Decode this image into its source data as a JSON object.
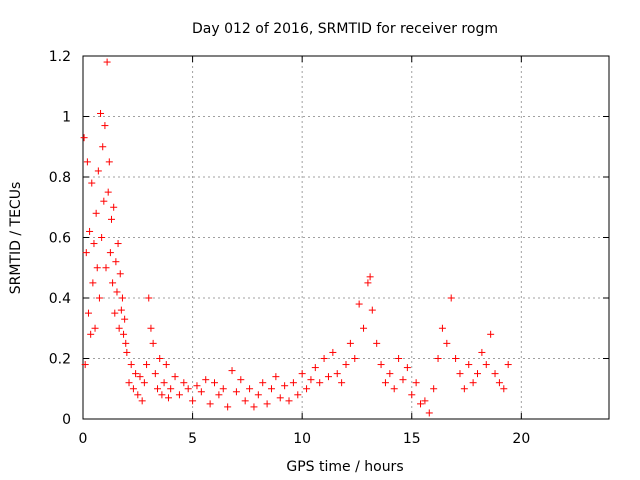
{
  "chart_data": {
    "type": "scatter",
    "title": "Day 012 of 2016, SRMTID for receiver rogm",
    "xlabel": "GPS time / hours",
    "ylabel": "SRMTID / TECUs",
    "xlim": [
      0,
      24
    ],
    "ylim": [
      0,
      1.2
    ],
    "xticks": [
      0,
      5,
      10,
      15,
      20
    ],
    "xtick_labels": [
      "0",
      "5",
      "10",
      "15",
      "20"
    ],
    "yticks": [
      0,
      0.2,
      0.4,
      0.6,
      0.8,
      1.0,
      1.2
    ],
    "ytick_labels": [
      "0",
      "0.2",
      "0.4",
      "0.6",
      "0.8",
      "1",
      "1.2"
    ],
    "grid": true,
    "marker": "plus",
    "color": "#ff0000",
    "series": [
      {
        "name": "SRMTID",
        "x": [
          0.05,
          0.1,
          0.15,
          0.2,
          0.25,
          0.3,
          0.35,
          0.4,
          0.45,
          0.5,
          0.55,
          0.6,
          0.65,
          0.7,
          0.75,
          0.8,
          0.85,
          0.9,
          0.95,
          1.0,
          1.05,
          1.1,
          1.15,
          1.2,
          1.25,
          1.3,
          1.35,
          1.4,
          1.45,
          1.5,
          1.55,
          1.6,
          1.65,
          1.7,
          1.75,
          1.8,
          1.85,
          1.9,
          1.95,
          2.0,
          2.1,
          2.2,
          2.3,
          2.4,
          2.5,
          2.6,
          2.7,
          2.8,
          2.9,
          3.0,
          3.1,
          3.2,
          3.3,
          3.4,
          3.5,
          3.6,
          3.7,
          3.8,
          3.9,
          4.0,
          4.2,
          4.4,
          4.6,
          4.8,
          5.0,
          5.2,
          5.4,
          5.6,
          5.8,
          6.0,
          6.2,
          6.4,
          6.6,
          6.8,
          7.0,
          7.2,
          7.4,
          7.6,
          7.8,
          8.0,
          8.2,
          8.4,
          8.6,
          8.8,
          9.0,
          9.2,
          9.4,
          9.6,
          9.8,
          10.0,
          10.2,
          10.4,
          10.6,
          10.8,
          11.0,
          11.2,
          11.4,
          11.6,
          11.8,
          12.0,
          12.2,
          12.4,
          12.6,
          12.8,
          13.0,
          13.1,
          13.2,
          13.4,
          13.6,
          13.8,
          14.0,
          14.2,
          14.4,
          14.6,
          14.8,
          15.0,
          15.2,
          15.4,
          15.6,
          15.8,
          16.0,
          16.2,
          16.4,
          16.6,
          16.8,
          17.0,
          17.2,
          17.4,
          17.6,
          17.8,
          18.0,
          18.2,
          18.4,
          18.6,
          18.8,
          19.0,
          19.2,
          19.4
        ],
        "y": [
          0.93,
          0.18,
          0.55,
          0.85,
          0.35,
          0.62,
          0.28,
          0.78,
          0.45,
          0.58,
          0.3,
          0.68,
          0.5,
          0.82,
          0.4,
          1.01,
          0.6,
          0.9,
          0.72,
          0.97,
          0.5,
          1.18,
          0.75,
          0.85,
          0.55,
          0.66,
          0.45,
          0.7,
          0.35,
          0.52,
          0.42,
          0.58,
          0.3,
          0.48,
          0.36,
          0.4,
          0.28,
          0.33,
          0.25,
          0.22,
          0.12,
          0.18,
          0.1,
          0.15,
          0.08,
          0.14,
          0.06,
          0.12,
          0.18,
          0.4,
          0.3,
          0.25,
          0.15,
          0.1,
          0.2,
          0.08,
          0.12,
          0.18,
          0.07,
          0.1,
          0.14,
          0.08,
          0.12,
          0.1,
          0.06,
          0.11,
          0.09,
          0.13,
          0.05,
          0.12,
          0.08,
          0.1,
          0.04,
          0.16,
          0.09,
          0.13,
          0.06,
          0.1,
          0.04,
          0.08,
          0.12,
          0.05,
          0.1,
          0.14,
          0.07,
          0.11,
          0.06,
          0.12,
          0.08,
          0.15,
          0.1,
          0.13,
          0.17,
          0.12,
          0.2,
          0.14,
          0.22,
          0.15,
          0.12,
          0.18,
          0.25,
          0.2,
          0.38,
          0.3,
          0.45,
          0.47,
          0.36,
          0.25,
          0.18,
          0.12,
          0.15,
          0.1,
          0.2,
          0.13,
          0.17,
          0.08,
          0.12,
          0.05,
          0.06,
          0.02,
          0.1,
          0.2,
          0.3,
          0.25,
          0.4,
          0.2,
          0.15,
          0.1,
          0.18,
          0.12,
          0.15,
          0.22,
          0.18,
          0.28,
          0.15,
          0.12,
          0.1,
          0.18
        ]
      }
    ]
  }
}
